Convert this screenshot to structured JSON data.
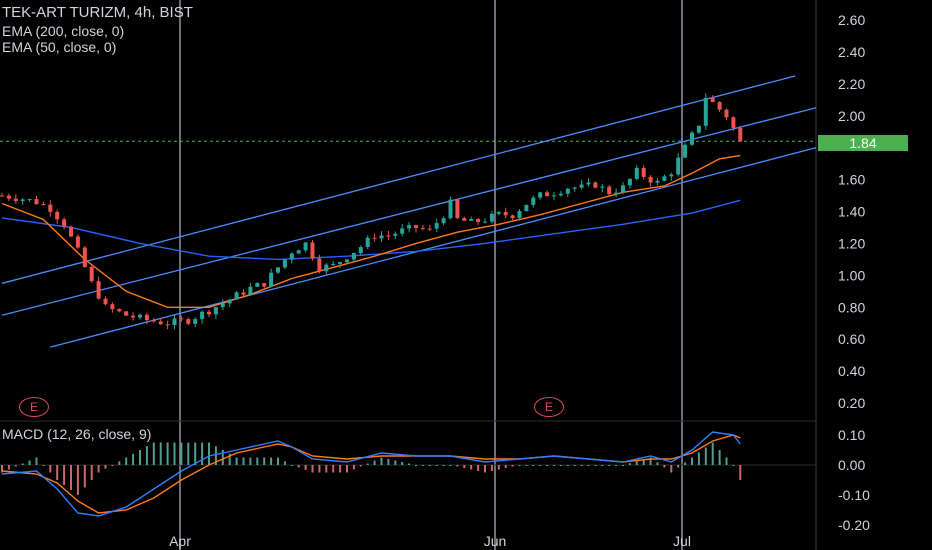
{
  "header": {
    "symbol_line": "TEK-ART TURIZM, 4h, BIST",
    "ema200_label": "EMA (200, close, 0)",
    "ema50_label": "EMA (50, close, 0)",
    "macd_label": "MACD (12, 26, close, 9)"
  },
  "last_price": "1.84",
  "events": [
    "E",
    "E"
  ],
  "colors": {
    "background": "#000000",
    "up_candle": "#26a69a",
    "down_candle": "#ef5350",
    "ema200": "#2962ff",
    "ema50": "#ff7a1a",
    "channel": "#4a8cff",
    "macd_line": "#2f7fff",
    "signal_line": "#ff7a1a",
    "price_tag": "#4caf50",
    "event_badge": "#e04a5a"
  },
  "chart_data": [
    {
      "type": "candlestick",
      "x_axis": [
        "Apr",
        "Jun",
        "Jul"
      ],
      "y_ticks": [
        "0.20",
        "0.40",
        "0.60",
        "0.80",
        "1.00",
        "1.20",
        "1.40",
        "1.60",
        "1.80",
        "2.00",
        "2.20",
        "2.40",
        "2.60"
      ],
      "ylim": [
        0.1,
        2.7
      ],
      "price_path": [
        [
          0,
          1.5
        ],
        [
          3,
          1.48
        ],
        [
          5,
          1.46
        ],
        [
          7,
          1.42
        ],
        [
          9,
          1.32
        ],
        [
          11,
          1.15
        ],
        [
          13,
          0.95
        ],
        [
          15,
          0.8
        ],
        [
          18,
          0.75
        ],
        [
          21,
          0.72
        ],
        [
          24,
          0.7
        ],
        [
          27,
          0.72
        ],
        [
          30,
          0.78
        ],
        [
          33,
          0.85
        ],
        [
          36,
          0.92
        ],
        [
          38,
          0.95
        ],
        [
          40,
          1.05
        ],
        [
          42,
          1.15
        ],
        [
          44,
          1.2
        ],
        [
          46,
          1.05
        ],
        [
          48,
          1.06
        ],
        [
          50,
          1.12
        ],
        [
          52,
          1.18
        ],
        [
          54,
          1.25
        ],
        [
          56,
          1.25
        ],
        [
          58,
          1.28
        ],
        [
          60,
          1.3
        ],
        [
          62,
          1.28
        ],
        [
          64,
          1.38
        ],
        [
          65,
          1.45
        ],
        [
          66,
          1.35
        ],
        [
          68,
          1.33
        ],
        [
          70,
          1.35
        ],
        [
          72,
          1.38
        ],
        [
          74,
          1.38
        ],
        [
          76,
          1.45
        ],
        [
          78,
          1.5
        ],
        [
          80,
          1.52
        ],
        [
          82,
          1.55
        ],
        [
          84,
          1.55
        ],
        [
          86,
          1.57
        ],
        [
          88,
          1.52
        ],
        [
          90,
          1.55
        ],
        [
          92,
          1.65
        ],
        [
          94,
          1.6
        ],
        [
          95,
          1.58
        ],
        [
          97,
          1.65
        ],
        [
          99,
          1.8
        ],
        [
          101,
          1.95
        ],
        [
          102,
          2.12
        ],
        [
          103,
          2.08
        ],
        [
          105,
          2.0
        ],
        [
          107,
          1.84
        ]
      ],
      "ema50_path": [
        [
          0,
          1.45
        ],
        [
          6,
          1.35
        ],
        [
          12,
          1.1
        ],
        [
          18,
          0.9
        ],
        [
          24,
          0.8
        ],
        [
          30,
          0.8
        ],
        [
          36,
          0.88
        ],
        [
          42,
          0.98
        ],
        [
          48,
          1.05
        ],
        [
          54,
          1.12
        ],
        [
          60,
          1.2
        ],
        [
          66,
          1.27
        ],
        [
          72,
          1.32
        ],
        [
          78,
          1.38
        ],
        [
          84,
          1.45
        ],
        [
          90,
          1.52
        ],
        [
          96,
          1.56
        ],
        [
          100,
          1.64
        ],
        [
          104,
          1.73
        ],
        [
          107,
          1.75
        ]
      ],
      "ema200_path": [
        [
          0,
          1.36
        ],
        [
          10,
          1.3
        ],
        [
          20,
          1.2
        ],
        [
          30,
          1.12
        ],
        [
          40,
          1.1
        ],
        [
          50,
          1.12
        ],
        [
          60,
          1.15
        ],
        [
          70,
          1.2
        ],
        [
          80,
          1.26
        ],
        [
          90,
          1.32
        ],
        [
          100,
          1.39
        ],
        [
          107,
          1.47
        ]
      ],
      "channel_lines": [
        {
          "from": [
            0,
            0.95
          ],
          "to": [
            115,
            2.25
          ]
        },
        {
          "from": [
            0,
            0.75
          ],
          "to": [
            118,
            2.05
          ]
        },
        {
          "from": [
            7,
            0.55
          ],
          "to": [
            118,
            1.8
          ]
        }
      ],
      "last_value": 1.84,
      "candle_count": 108
    },
    {
      "type": "line",
      "title": "MACD (12, 26, close, 9)",
      "y_ticks": [
        "-0.20",
        "-0.10",
        "0.00",
        "0.10"
      ],
      "ylim": [
        -0.2,
        0.12
      ],
      "series": [
        {
          "name": "MACD",
          "points": [
            [
              0,
              -0.03
            ],
            [
              5,
              -0.02
            ],
            [
              8,
              -0.08
            ],
            [
              11,
              -0.16
            ],
            [
              14,
              -0.17
            ],
            [
              18,
              -0.14
            ],
            [
              22,
              -0.08
            ],
            [
              26,
              -0.02
            ],
            [
              30,
              0.03
            ],
            [
              34,
              0.05
            ],
            [
              38,
              0.07
            ],
            [
              40,
              0.08
            ],
            [
              42,
              0.06
            ],
            [
              45,
              0.02
            ],
            [
              50,
              0.01
            ],
            [
              55,
              0.04
            ],
            [
              60,
              0.03
            ],
            [
              65,
              0.03
            ],
            [
              70,
              0.01
            ],
            [
              75,
              0.02
            ],
            [
              80,
              0.03
            ],
            [
              85,
              0.02
            ],
            [
              90,
              0.01
            ],
            [
              94,
              0.03
            ],
            [
              97,
              0.01
            ],
            [
              100,
              0.05
            ],
            [
              103,
              0.11
            ],
            [
              106,
              0.1
            ],
            [
              107,
              0.07
            ]
          ]
        },
        {
          "name": "Signal",
          "points": [
            [
              0,
              -0.02
            ],
            [
              5,
              -0.03
            ],
            [
              8,
              -0.06
            ],
            [
              11,
              -0.12
            ],
            [
              14,
              -0.16
            ],
            [
              18,
              -0.15
            ],
            [
              22,
              -0.11
            ],
            [
              26,
              -0.05
            ],
            [
              30,
              0.0
            ],
            [
              34,
              0.04
            ],
            [
              38,
              0.06
            ],
            [
              40,
              0.07
            ],
            [
              42,
              0.06
            ],
            [
              45,
              0.03
            ],
            [
              50,
              0.02
            ],
            [
              55,
              0.03
            ],
            [
              60,
              0.03
            ],
            [
              65,
              0.03
            ],
            [
              70,
              0.02
            ],
            [
              75,
              0.02
            ],
            [
              80,
              0.03
            ],
            [
              85,
              0.02
            ],
            [
              90,
              0.01
            ],
            [
              94,
              0.02
            ],
            [
              97,
              0.02
            ],
            [
              100,
              0.04
            ],
            [
              103,
              0.08
            ],
            [
              106,
              0.1
            ],
            [
              107,
              0.09
            ]
          ]
        }
      ]
    }
  ]
}
